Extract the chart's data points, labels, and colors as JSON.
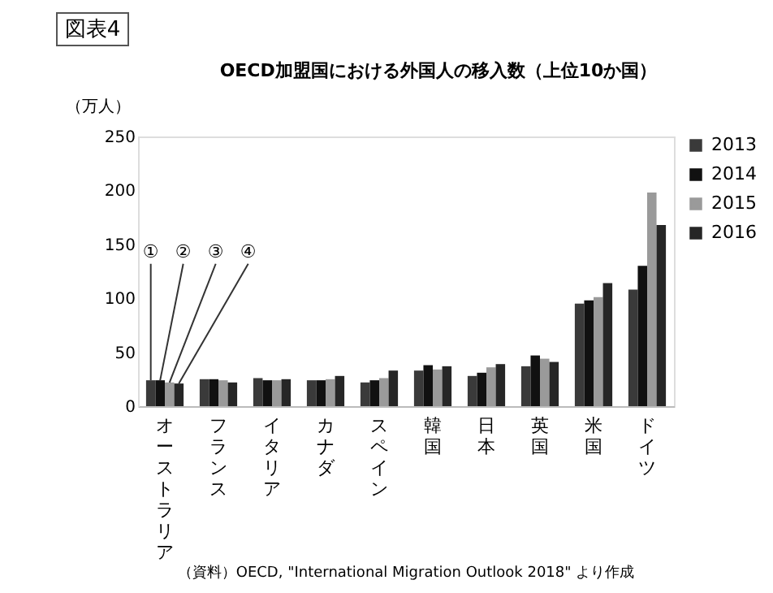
{
  "chart_data": {
    "type": "bar",
    "title": "OECD加盟国における外国人の移入数（上位10か国）",
    "ylabel": "（万人）",
    "categories": [
      "オーストラリア",
      "フランス",
      "イタリア",
      "カナダ",
      "スペイン",
      "韓国",
      "日本",
      "英国",
      "米国",
      "ドイツ"
    ],
    "series": [
      {
        "name": "2013",
        "color": "#3a3a3a",
        "values": [
          24,
          25,
          26,
          24,
          22,
          33,
          28,
          37,
          95,
          108
        ]
      },
      {
        "name": "2014",
        "color": "#111111",
        "values": [
          24,
          25,
          24,
          24,
          24,
          38,
          31,
          47,
          98,
          130
        ]
      },
      {
        "name": "2015",
        "color": "#9a9a9a",
        "values": [
          22,
          24,
          24,
          25,
          26,
          34,
          36,
          44,
          101,
          198
        ]
      },
      {
        "name": "2016",
        "color": "#262626",
        "values": [
          21,
          22,
          25,
          28,
          33,
          37,
          39,
          41,
          114,
          168
        ]
      }
    ],
    "ylim": [
      0,
      250
    ],
    "yticks": [
      0,
      50,
      100,
      150,
      200,
      250
    ],
    "grid": false,
    "legend": "right",
    "annotations": [
      "図表4",
      "（資料）OECD, \"International Migration Outlook 2018\" より作成",
      {
        "text": "①",
        "x": "オーストラリア",
        "y": 24
      },
      {
        "text": "②",
        "x": "オーストラリア",
        "y": 24
      },
      {
        "text": "③",
        "x": "オーストラリア",
        "y": 22
      },
      {
        "text": "④",
        "x": "オーストラリア",
        "y": 21
      }
    ]
  }
}
